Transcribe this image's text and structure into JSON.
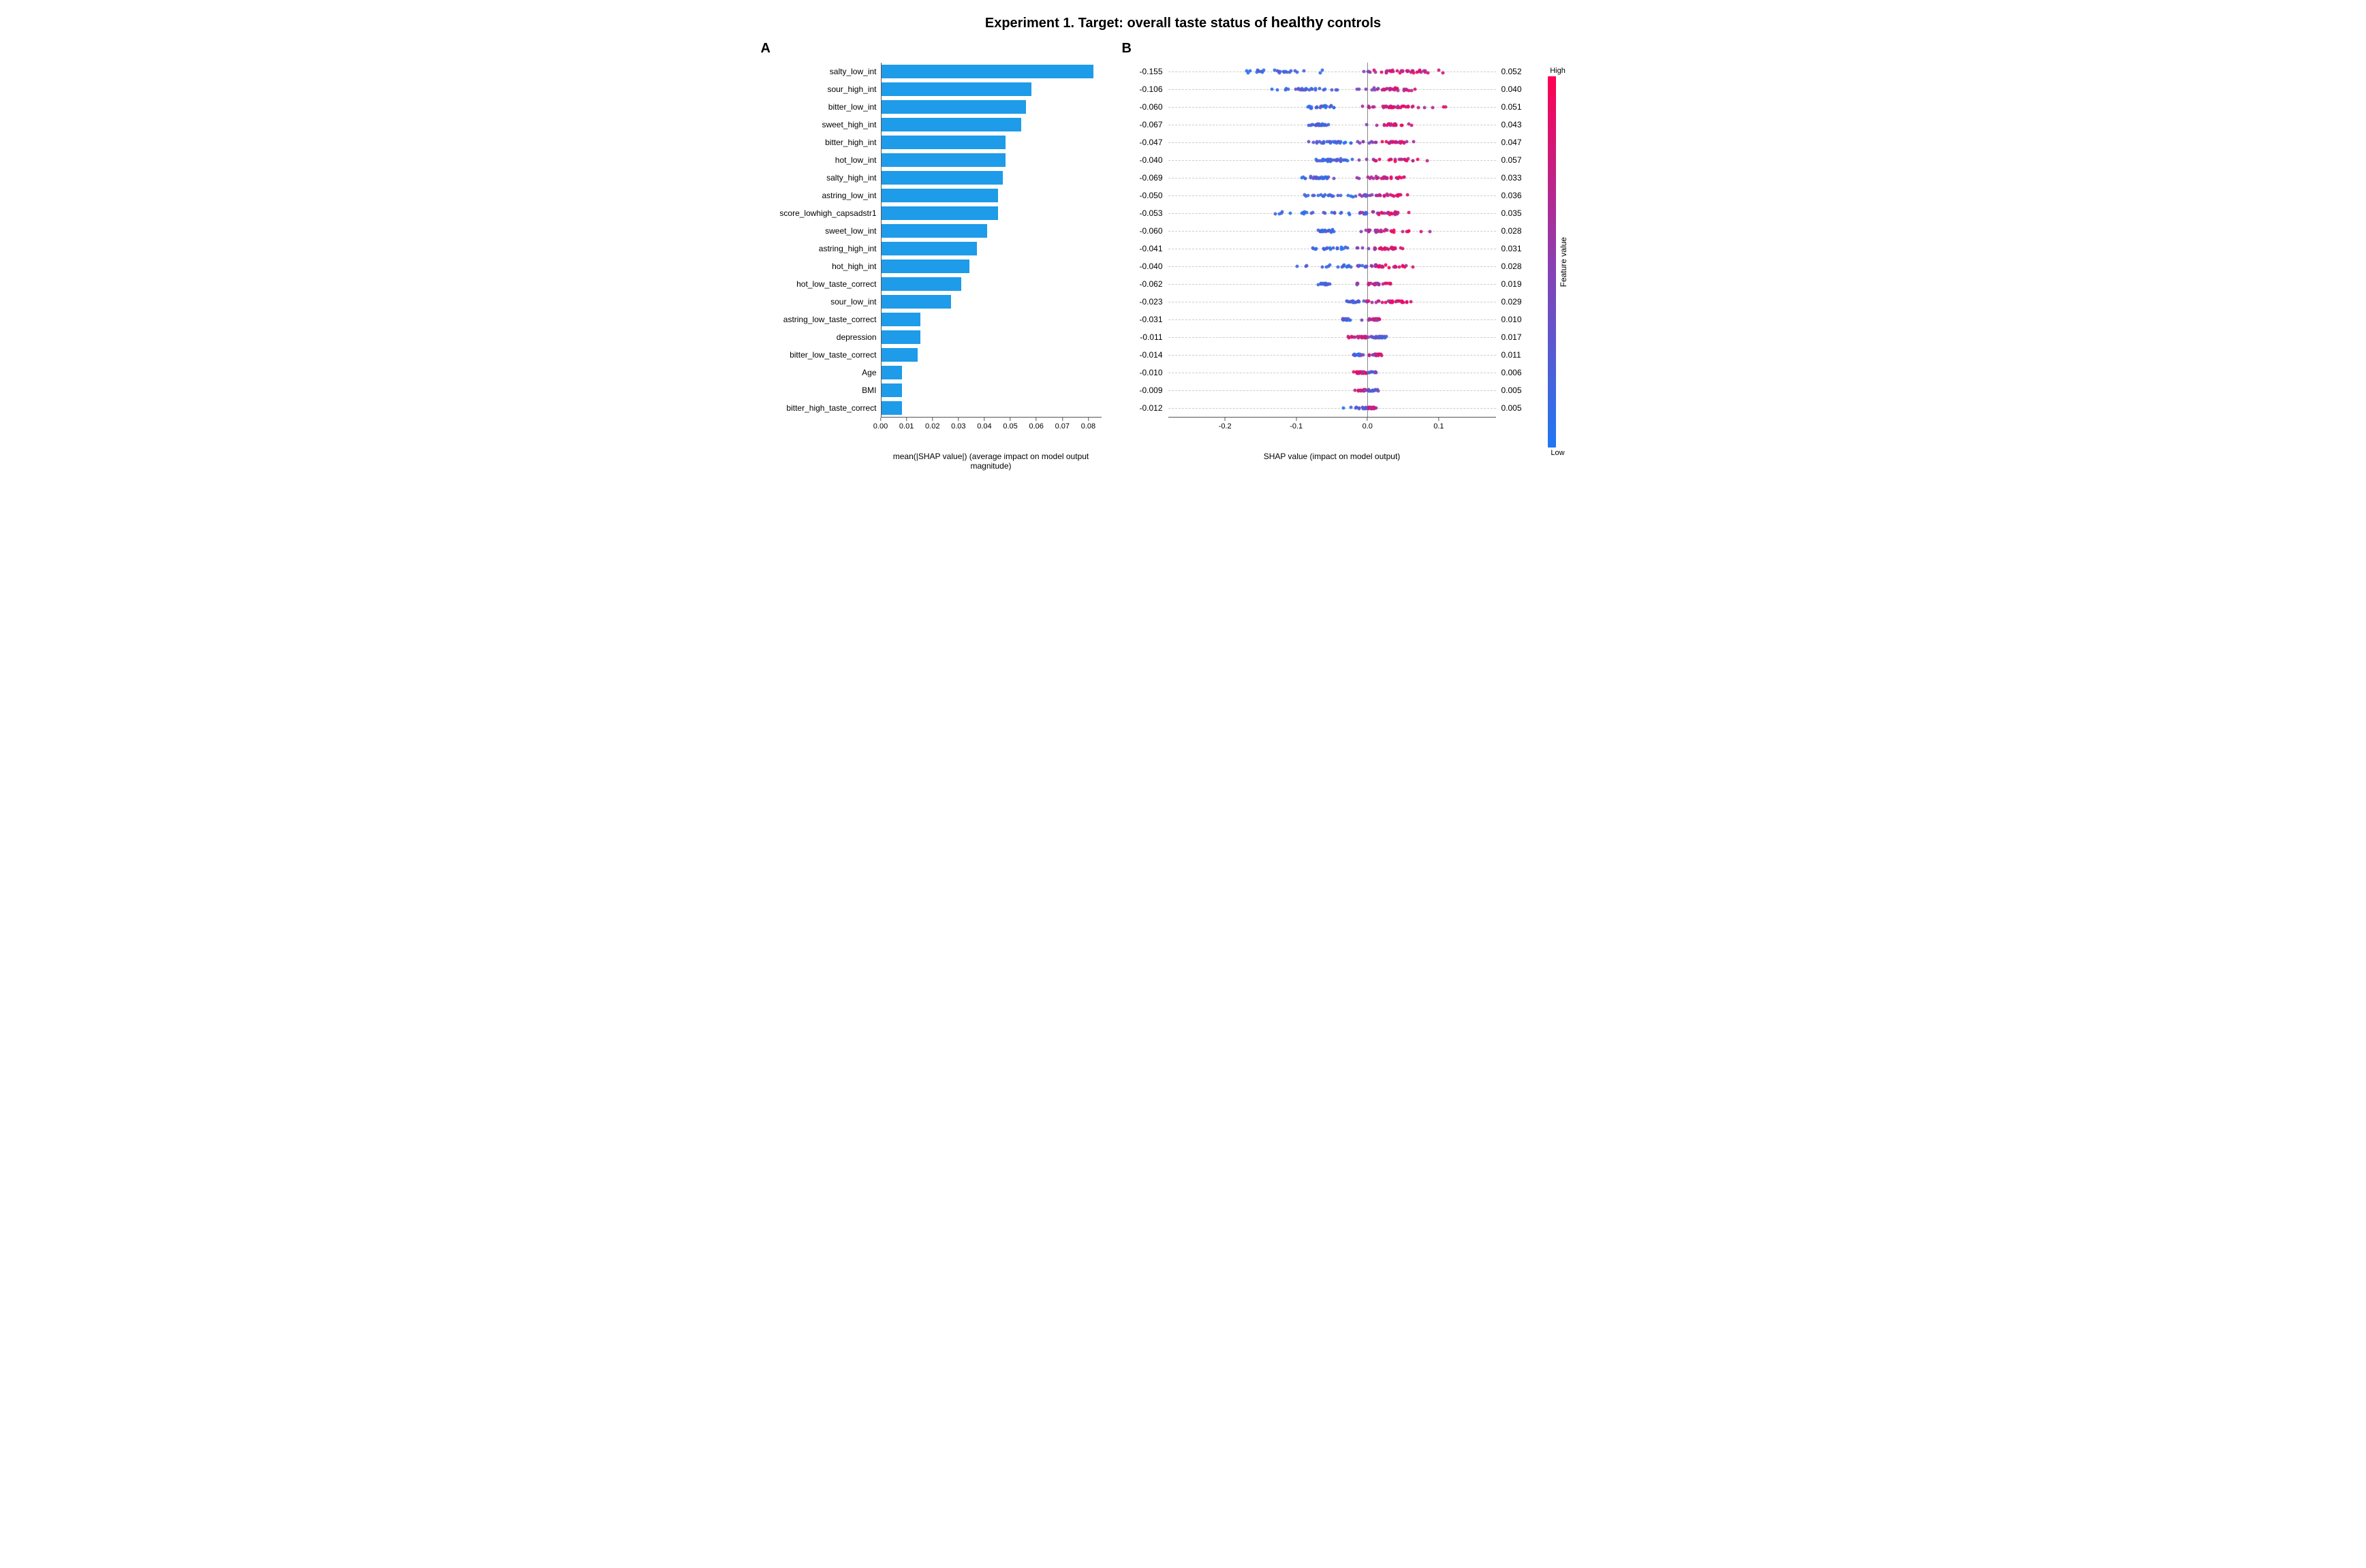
{
  "title_pre": "Experiment 1. Target: overall taste status of ",
  "title_emph": "healthy",
  "title_post": " controls",
  "panelA_label": "A",
  "panelB_label": "B",
  "panelA": {
    "type": "bar",
    "xlabel": "mean(|SHAP value|) (average impact on model output magnitude)",
    "xlim": [
      0,
      0.085
    ],
    "ticks": [
      0.0,
      0.01,
      0.02,
      0.03,
      0.04,
      0.05,
      0.06,
      0.07,
      0.08
    ],
    "tick_labels": [
      "0.00",
      "0.01",
      "0.02",
      "0.03",
      "0.04",
      "0.05",
      "0.06",
      "0.07",
      "0.08"
    ],
    "bar_color": "#1e9be9",
    "axis_color": "#555555",
    "label_fontsize": 12,
    "features": [
      {
        "name": "salty_low_int",
        "value": 0.082
      },
      {
        "name": "sour_high_int",
        "value": 0.058
      },
      {
        "name": "bitter_low_int",
        "value": 0.056
      },
      {
        "name": "sweet_high_int",
        "value": 0.054
      },
      {
        "name": "bitter_high_int",
        "value": 0.048
      },
      {
        "name": "hot_low_int",
        "value": 0.048
      },
      {
        "name": "salty_high_int",
        "value": 0.047
      },
      {
        "name": "astring_low_int",
        "value": 0.045
      },
      {
        "name": "score_lowhigh_capsadstr1",
        "value": 0.045
      },
      {
        "name": "sweet_low_int",
        "value": 0.041
      },
      {
        "name": "astring_high_int",
        "value": 0.037
      },
      {
        "name": "hot_high_int",
        "value": 0.034
      },
      {
        "name": "hot_low_taste_correct",
        "value": 0.031
      },
      {
        "name": "sour_low_int",
        "value": 0.027
      },
      {
        "name": "astring_low_taste_correct",
        "value": 0.015
      },
      {
        "name": "depression",
        "value": 0.015
      },
      {
        "name": "bitter_low_taste_correct",
        "value": 0.014
      },
      {
        "name": "Age",
        "value": 0.008
      },
      {
        "name": "BMI",
        "value": 0.008
      },
      {
        "name": "bitter_high_taste_correct",
        "value": 0.008
      }
    ]
  },
  "panelB": {
    "type": "beeswarm",
    "xlabel": "SHAP value (impact on model output)",
    "xlim": [
      -0.28,
      0.18
    ],
    "ticks": [
      -0.2,
      -0.1,
      0.0,
      0.1
    ],
    "tick_labels": [
      "-0.2",
      "-0.1",
      "0.0",
      "0.1"
    ],
    "zero_color": "#888888",
    "grid_color": "#cccccc",
    "color_low": "#1f77f4",
    "color_mid": "#8b3fb0",
    "color_high": "#ff0051",
    "dot_size": 5,
    "colorbar_label": "Feature value",
    "colorbar_high": "High",
    "colorbar_low": "Low",
    "rows": [
      {
        "left": "-0.155",
        "right": "0.052",
        "min": -0.24,
        "max": 0.15,
        "neg_center": -0.12,
        "pos_center": 0.06,
        "spread": 1.0
      },
      {
        "left": "-0.106",
        "right": "0.040",
        "min": -0.19,
        "max": 0.1,
        "neg_center": -0.09,
        "pos_center": 0.04,
        "spread": 0.85
      },
      {
        "left": "-0.060",
        "right": "0.051",
        "min": -0.11,
        "max": 0.16,
        "neg_center": -0.06,
        "pos_center": 0.045,
        "spread": 0.9
      },
      {
        "left": "-0.067",
        "right": "0.043",
        "min": -0.1,
        "max": 0.09,
        "neg_center": -0.07,
        "pos_center": 0.04,
        "spread": 0.7
      },
      {
        "left": "-0.047",
        "right": "0.047",
        "min": -0.11,
        "max": 0.11,
        "neg_center": -0.05,
        "pos_center": 0.04,
        "spread": 0.8
      },
      {
        "left": "-0.040",
        "right": "0.057",
        "min": -0.11,
        "max": 0.12,
        "neg_center": -0.05,
        "pos_center": 0.05,
        "spread": 0.85
      },
      {
        "left": "-0.069",
        "right": "0.033",
        "min": -0.12,
        "max": 0.08,
        "neg_center": -0.07,
        "pos_center": 0.03,
        "spread": 0.75
      },
      {
        "left": "-0.050",
        "right": "0.036",
        "min": -0.16,
        "max": 0.09,
        "neg_center": -0.05,
        "pos_center": 0.035,
        "spread": 0.8
      },
      {
        "left": "-0.053",
        "right": "0.035",
        "min": -0.25,
        "max": 0.09,
        "neg_center": -0.05,
        "pos_center": 0.035,
        "spread": 0.85
      },
      {
        "left": "-0.060",
        "right": "0.028",
        "min": -0.1,
        "max": 0.14,
        "neg_center": -0.06,
        "pos_center": 0.03,
        "spread": 0.8
      },
      {
        "left": "-0.041",
        "right": "0.031",
        "min": -0.14,
        "max": 0.08,
        "neg_center": -0.05,
        "pos_center": 0.03,
        "spread": 0.75
      },
      {
        "left": "-0.040",
        "right": "0.028",
        "min": -0.17,
        "max": 0.09,
        "neg_center": -0.04,
        "pos_center": 0.03,
        "spread": 0.8
      },
      {
        "left": "-0.062",
        "right": "0.019",
        "min": -0.08,
        "max": 0.05,
        "neg_center": -0.06,
        "pos_center": 0.015,
        "spread": 0.6
      },
      {
        "left": "-0.023",
        "right": "0.029",
        "min": -0.05,
        "max": 0.1,
        "neg_center": -0.02,
        "pos_center": 0.03,
        "spread": 0.7
      },
      {
        "left": "-0.031",
        "right": "0.010",
        "min": -0.05,
        "max": 0.03,
        "neg_center": -0.03,
        "pos_center": 0.01,
        "spread": 0.5
      },
      {
        "left": "-0.011",
        "right": "0.017",
        "min": -0.06,
        "max": 0.04,
        "neg_center": -0.01,
        "pos_center": 0.015,
        "spread": 0.6,
        "invert": true
      },
      {
        "left": "-0.014",
        "right": "0.011",
        "min": -0.03,
        "max": 0.03,
        "neg_center": -0.015,
        "pos_center": 0.01,
        "spread": 0.45
      },
      {
        "left": "-0.010",
        "right": "0.006",
        "min": -0.03,
        "max": 0.02,
        "neg_center": -0.01,
        "pos_center": 0.005,
        "spread": 0.4,
        "invert": true
      },
      {
        "left": "-0.009",
        "right": "0.005",
        "min": -0.03,
        "max": 0.02,
        "neg_center": -0.008,
        "pos_center": 0.005,
        "spread": 0.4,
        "invert": true
      },
      {
        "left": "-0.012",
        "right": "0.005",
        "min": -0.05,
        "max": 0.02,
        "neg_center": -0.01,
        "pos_center": 0.005,
        "spread": 0.4
      }
    ]
  }
}
